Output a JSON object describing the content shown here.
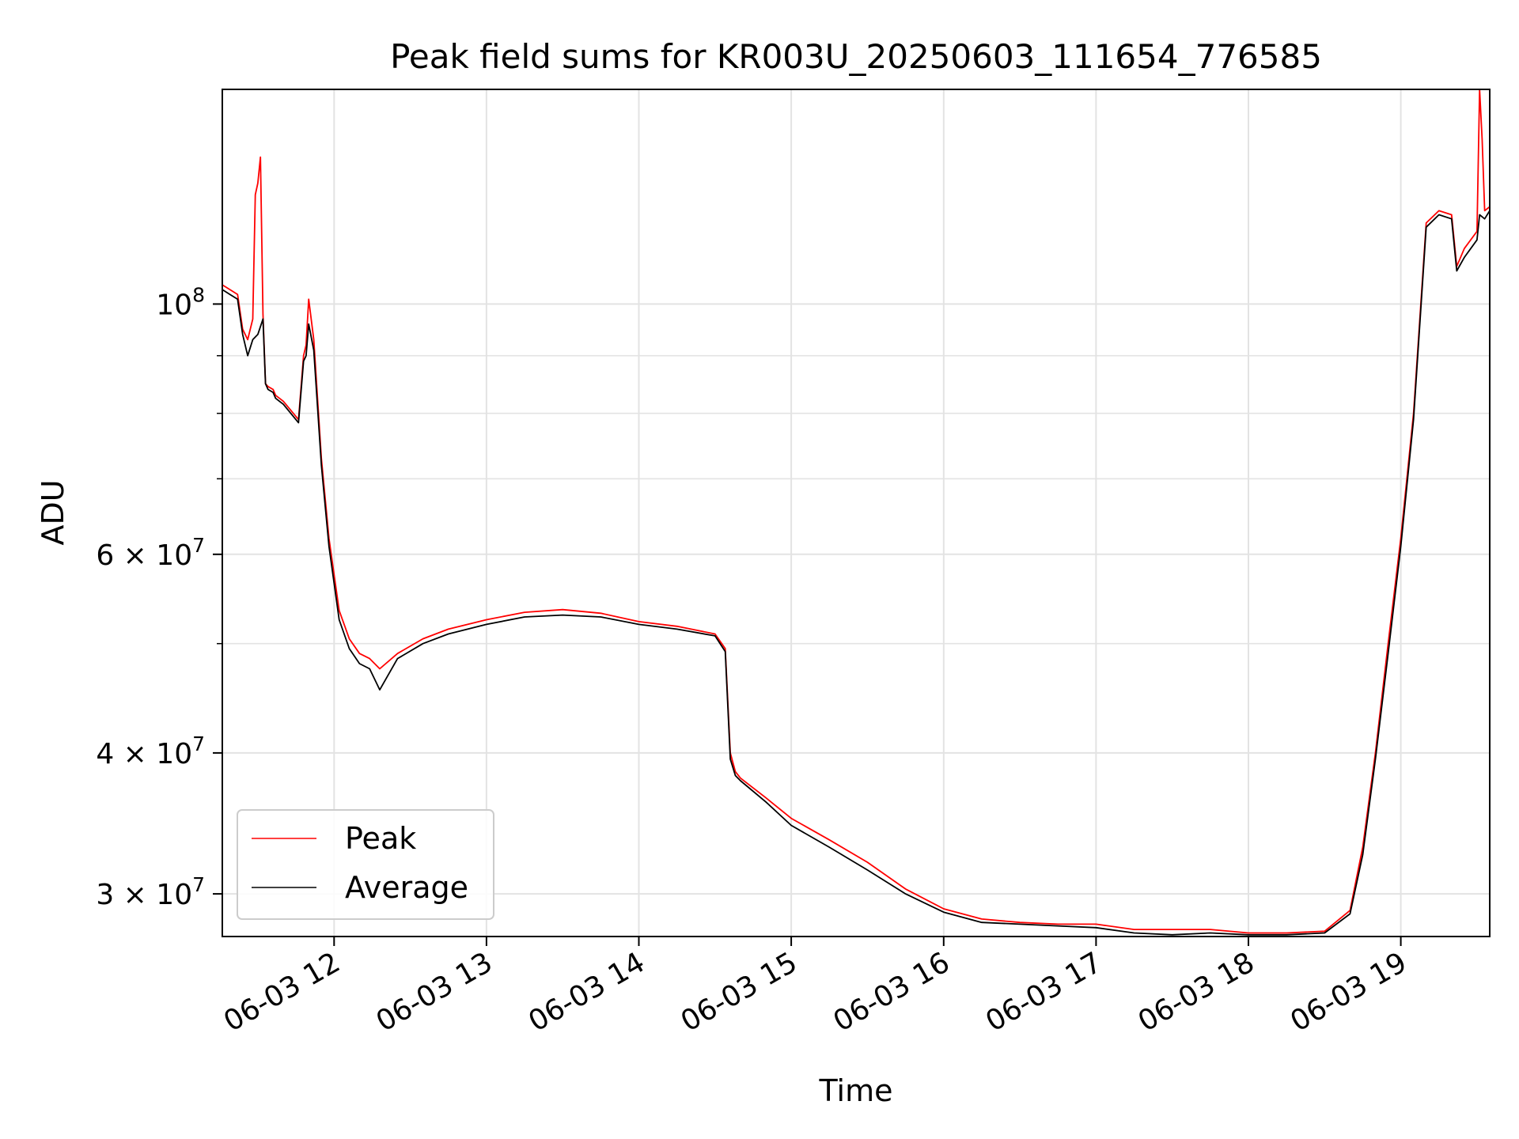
{
  "chart_data": {
    "type": "line",
    "title": "Peak field sums for KR003U_20250603_111654_776585",
    "xlabel": "Time",
    "ylabel": "ADU",
    "yscale": "log",
    "xlim": [
      "2025-06-03 11:16",
      "2025-06-03 19:35"
    ],
    "ylim": [
      27500000,
      155000000
    ],
    "grid": true,
    "legend": "lower-left",
    "x_ticks": [
      "06-03 12",
      "06-03 13",
      "06-03 14",
      "06-03 15",
      "06-03 16",
      "06-03 17",
      "06-03 18",
      "06-03 19"
    ],
    "y_ticks": [
      {
        "value": 30000000,
        "label": "3 × 10",
        "exp": "7"
      },
      {
        "value": 40000000,
        "label": "4 × 10",
        "exp": "7"
      },
      {
        "value": 60000000,
        "label": "6 × 10",
        "exp": "7"
      },
      {
        "value": 100000000,
        "label": "10",
        "exp": "8"
      }
    ],
    "series": [
      {
        "name": "Peak",
        "color": "#ff0000",
        "x": [
          "11:16",
          "11:19",
          "11:22",
          "11:24",
          "11:26",
          "11:28",
          "11:29",
          "11:30",
          "11:31",
          "11:32",
          "11:33",
          "11:34",
          "11:36",
          "11:37",
          "11:40",
          "11:46",
          "11:48",
          "11:49",
          "11:50",
          "11:52",
          "11:55",
          "11:58",
          "12:02",
          "12:06",
          "12:10",
          "12:14",
          "12:18",
          "12:25",
          "12:35",
          "12:45",
          "13:00",
          "13:15",
          "13:30",
          "13:45",
          "14:00",
          "14:15",
          "14:30",
          "14:34",
          "14:36",
          "14:38",
          "14:40",
          "14:50",
          "15:00",
          "15:15",
          "15:30",
          "15:45",
          "16:00",
          "16:15",
          "16:30",
          "16:45",
          "17:00",
          "17:15",
          "17:30",
          "17:45",
          "18:00",
          "18:15",
          "18:30",
          "18:40",
          "18:45",
          "18:50",
          "18:55",
          "19:00",
          "19:05",
          "19:10",
          "19:15",
          "19:20",
          "19:22",
          "19:25",
          "19:30",
          "19:31",
          "19:32",
          "19:33",
          "19:35"
        ],
        "values": [
          104000000,
          103000000,
          102000000,
          95000000,
          93000000,
          97000000,
          125000000,
          128000000,
          135000000,
          98000000,
          85000000,
          84500000,
          84000000,
          83000000,
          82000000,
          79000000,
          90000000,
          92000000,
          101000000,
          93000000,
          73000000,
          62000000,
          53500000,
          50500000,
          49000000,
          48500000,
          47500000,
          49000000,
          50500000,
          51500000,
          52500000,
          53300000,
          53600000,
          53200000,
          52300000,
          51800000,
          51000000,
          49500000,
          40000000,
          38500000,
          38000000,
          36500000,
          35000000,
          33500000,
          32000000,
          30300000,
          29100000,
          28500000,
          28300000,
          28200000,
          28200000,
          27900000,
          27900000,
          27900000,
          27700000,
          27700000,
          27800000,
          29000000,
          33000000,
          40000000,
          50000000,
          62000000,
          80000000,
          118000000,
          121000000,
          120000000,
          108000000,
          112000000,
          116000000,
          155000000,
          140000000,
          121000000,
          122000000
        ]
      },
      {
        "name": "Average",
        "color": "#000000",
        "x": [
          "11:16",
          "11:19",
          "11:22",
          "11:24",
          "11:26",
          "11:28",
          "11:30",
          "11:32",
          "11:33",
          "11:34",
          "11:36",
          "11:37",
          "11:40",
          "11:46",
          "11:48",
          "11:49",
          "11:50",
          "11:52",
          "11:55",
          "11:58",
          "12:02",
          "12:06",
          "12:10",
          "12:14",
          "12:18",
          "12:25",
          "12:35",
          "12:45",
          "13:00",
          "13:15",
          "13:30",
          "13:45",
          "14:00",
          "14:15",
          "14:30",
          "14:34",
          "14:36",
          "14:38",
          "14:40",
          "14:50",
          "15:00",
          "15:15",
          "15:30",
          "15:45",
          "16:00",
          "16:15",
          "16:30",
          "16:45",
          "17:00",
          "17:15",
          "17:30",
          "17:45",
          "18:00",
          "18:15",
          "18:30",
          "18:40",
          "18:45",
          "18:50",
          "18:55",
          "19:00",
          "19:05",
          "19:10",
          "19:15",
          "19:20",
          "19:22",
          "19:25",
          "19:30",
          "19:31",
          "19:33",
          "19:35"
        ],
        "values": [
          103000000,
          102000000,
          101000000,
          94000000,
          90000000,
          93000000,
          94000000,
          97000000,
          85000000,
          84000000,
          83500000,
          82500000,
          81500000,
          78500000,
          89000000,
          90000000,
          96000000,
          91000000,
          72000000,
          61000000,
          52500000,
          49500000,
          48000000,
          47500000,
          45500000,
          48500000,
          50000000,
          51000000,
          52000000,
          52800000,
          53000000,
          52800000,
          52000000,
          51500000,
          50800000,
          49200000,
          39500000,
          38200000,
          37800000,
          36200000,
          34500000,
          33000000,
          31500000,
          30000000,
          28900000,
          28300000,
          28200000,
          28100000,
          28000000,
          27700000,
          27600000,
          27700000,
          27600000,
          27600000,
          27700000,
          28800000,
          32500000,
          39500000,
          49000000,
          61000000,
          79000000,
          117000000,
          120000000,
          119000000,
          107000000,
          110000000,
          114000000,
          120000000,
          119000000,
          121000000
        ]
      }
    ]
  }
}
